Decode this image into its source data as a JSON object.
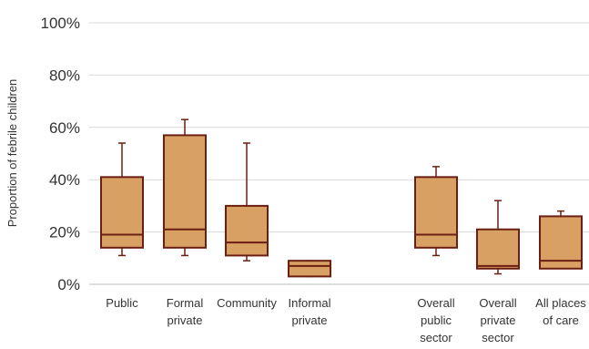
{
  "chart_data": {
    "type": "box",
    "ylabel": "Proportion of febrile children",
    "ylim": [
      0,
      100
    ],
    "yticks": [
      "0%",
      "20%",
      "40%",
      "60%",
      "80%",
      "100%"
    ],
    "grid": true,
    "categories": [
      {
        "label": [
          "Public"
        ],
        "min": 11,
        "q1": 14,
        "median": 19,
        "q3": 41,
        "max": 54
      },
      {
        "label": [
          "Formal",
          "private"
        ],
        "min": 11,
        "q1": 14,
        "median": 21,
        "q3": 57,
        "max": 63
      },
      {
        "label": [
          "Community"
        ],
        "min": 9,
        "q1": 11,
        "median": 16,
        "q3": 30,
        "max": 54
      },
      {
        "label": [
          "Informal",
          "private"
        ],
        "min": 3,
        "q1": 3,
        "median": 7,
        "q3": 9,
        "max": 9
      },
      {
        "label": [
          "Overall",
          "public",
          "sector"
        ],
        "min": 11,
        "q1": 14,
        "median": 19,
        "q3": 41,
        "max": 45
      },
      {
        "label": [
          "Overall",
          "private",
          "sector"
        ],
        "min": 4,
        "q1": 6,
        "median": 7,
        "q3": 21,
        "max": 32
      },
      {
        "label": [
          "All places",
          "of care"
        ],
        "min": 6,
        "q1": 6,
        "median": 9,
        "q3": 26,
        "max": 28
      }
    ],
    "colors": {
      "box_fill": "#D9A064",
      "box_stroke": "#6B1F12",
      "grid": "#D9D9D9"
    }
  }
}
